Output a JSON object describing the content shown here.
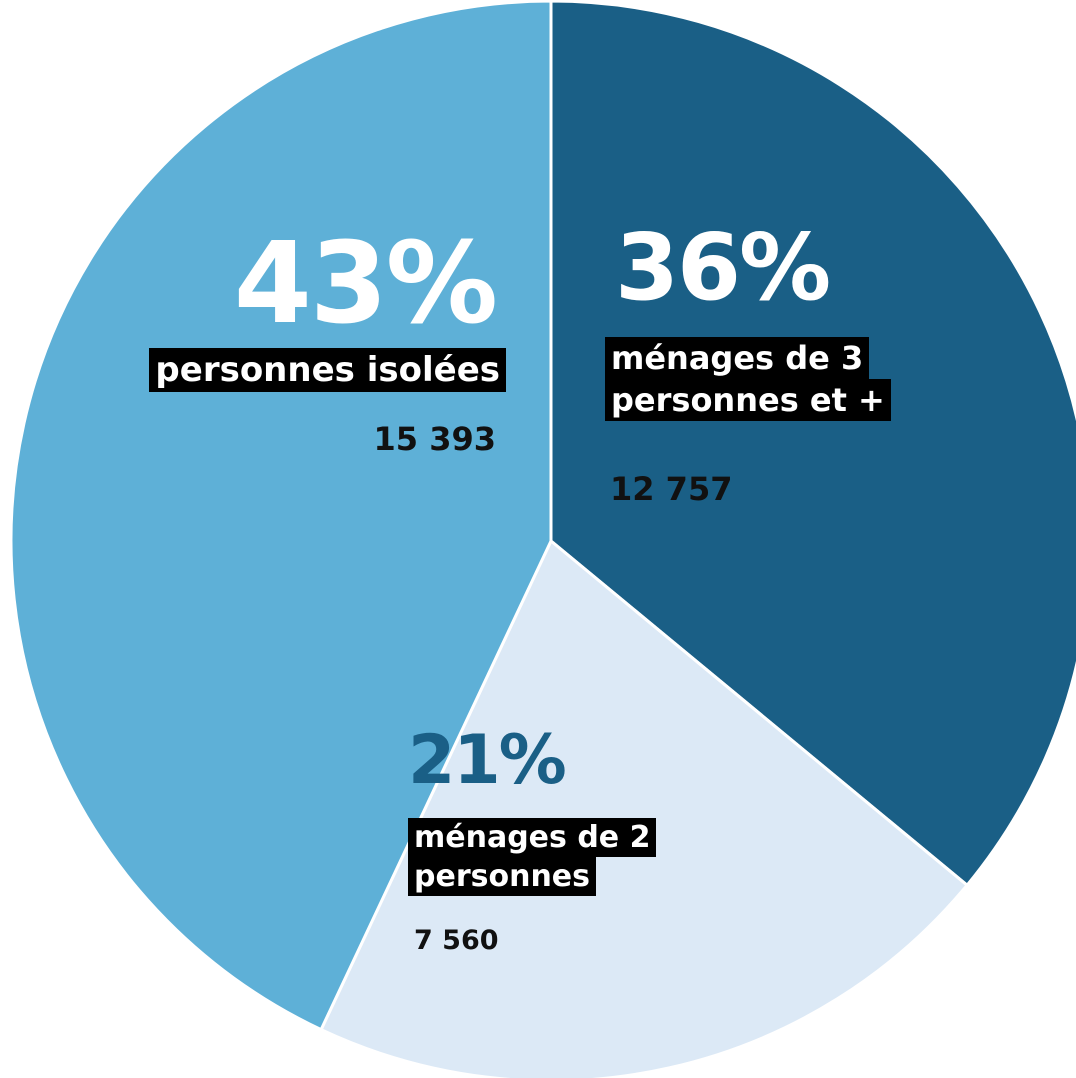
{
  "chart_data": {
    "type": "pie",
    "categories": [
      "ménages de 3 personnes et +",
      "ménages de 2 personnes",
      "personnes isolées"
    ],
    "values": [
      36,
      21,
      43
    ],
    "value_labels": [
      "36%",
      "21%",
      "43%"
    ],
    "counts": [
      {
        "value": 12757,
        "label": "12 757"
      },
      {
        "value": 7560,
        "label": "7 560"
      },
      {
        "value": 15393,
        "label": "15 393"
      }
    ],
    "colors": [
      "#1a5f86",
      "#dce9f6",
      "#5eb0d7"
    ],
    "start_angle": 0,
    "direction": "clockwise"
  }
}
